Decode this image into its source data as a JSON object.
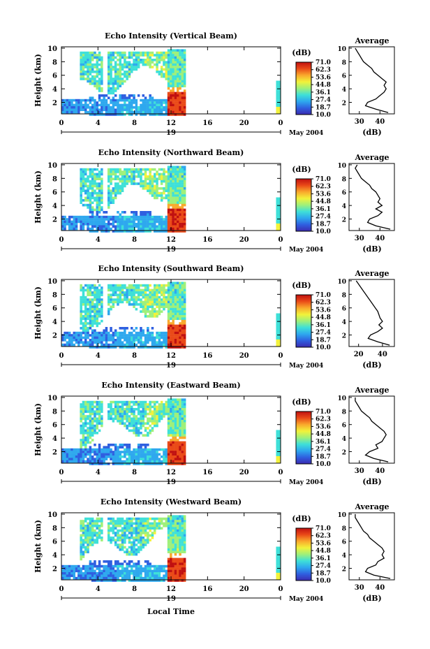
{
  "x_label": "Local Time",
  "y_label": "Height (km)",
  "day_label": "19",
  "month_label": "May 2004",
  "colorbar_unit": "(dB)",
  "avg_title": "Average",
  "avg_unit": "(dB)",
  "colorbar_ticks": [
    "71.0",
    "62.3",
    "53.6",
    "44.8",
    "36.1",
    "27.4",
    "18.7",
    "10.0"
  ],
  "colorbar_colors": [
    "#3b2bb0",
    "#2f5fe0",
    "#2ea8ee",
    "#3ee0d8",
    "#9ff07a",
    "#f2f23a",
    "#f9a92c",
    "#ea4a18",
    "#c01010"
  ],
  "chart_data": [
    {
      "type": "heatmap",
      "title": "Echo Intensity (Vertical Beam)",
      "xlabel": "",
      "ylabel": "Height (km)",
      "xlim": [
        0,
        24
      ],
      "ylim": [
        0.3,
        10.2
      ],
      "x_ticks": [
        "0",
        "4",
        "8",
        "12",
        "16",
        "20",
        "0"
      ],
      "y_ticks": [
        "2",
        "4",
        "6",
        "8",
        "10"
      ],
      "colorbar": {
        "label": "(dB)",
        "min": 10.0,
        "max": 71.0
      },
      "average_profile": {
        "xlabel": "(dB)",
        "x_ticks": [
          "30",
          "40"
        ],
        "xlim": [
          25,
          47
        ],
        "heights": [
          0.5,
          1.0,
          1.5,
          2.0,
          2.5,
          3.0,
          3.5,
          4.0,
          4.5,
          5.0,
          5.5,
          6.0,
          6.5,
          7.0,
          7.5,
          8.0,
          8.5,
          9.0,
          9.5,
          10.0
        ],
        "db": [
          44,
          38,
          33,
          34,
          38,
          40,
          42,
          43,
          42,
          43,
          41,
          39,
          37,
          36,
          34,
          32,
          31,
          30,
          29,
          28
        ]
      }
    },
    {
      "type": "heatmap",
      "title": "Echo Intensity (Northward Beam)",
      "xlabel": "",
      "ylabel": "Height (km)",
      "xlim": [
        0,
        24
      ],
      "ylim": [
        0.3,
        10.2
      ],
      "x_ticks": [
        "0",
        "4",
        "8",
        "12",
        "16",
        "20",
        "0"
      ],
      "y_ticks": [
        "2",
        "4",
        "6",
        "8",
        "10"
      ],
      "colorbar": {
        "label": "(dB)",
        "min": 10.0,
        "max": 71.0
      },
      "average_profile": {
        "xlabel": "(dB)",
        "x_ticks": [
          "30",
          "40"
        ],
        "xlim": [
          25,
          47
        ],
        "heights": [
          0.5,
          1.0,
          1.5,
          2.0,
          2.5,
          3.0,
          3.5,
          4.0,
          4.5,
          5.0,
          5.5,
          6.0,
          6.5,
          7.0,
          7.5,
          8.0,
          8.5,
          9.0,
          9.5,
          10.0
        ],
        "db": [
          45,
          38,
          34,
          35,
          39,
          41,
          38,
          41,
          39,
          40,
          39,
          38,
          36,
          35,
          33,
          31,
          30,
          29,
          28,
          29
        ]
      }
    },
    {
      "type": "heatmap",
      "title": "Echo Intensity (Southward Beam)",
      "xlabel": "",
      "ylabel": "Height (km)",
      "xlim": [
        0,
        24
      ],
      "ylim": [
        0.3,
        10.2
      ],
      "x_ticks": [
        "0",
        "4",
        "8",
        "12",
        "16",
        "20",
        "0"
      ],
      "y_ticks": [
        "2",
        "4",
        "6",
        "8",
        "10"
      ],
      "colorbar": {
        "label": "(dB)",
        "min": 10.0,
        "max": 71.0
      },
      "average_profile": {
        "xlabel": "(dB)",
        "x_ticks": [
          "20",
          "40"
        ],
        "xlim": [
          12,
          50
        ],
        "heights": [
          0.5,
          1.0,
          1.5,
          2.0,
          2.5,
          3.0,
          3.5,
          4.0,
          4.5,
          5.0,
          5.5,
          6.0,
          6.5,
          7.0,
          7.5,
          8.0,
          8.5,
          9.0,
          9.5,
          10.0
        ],
        "db": [
          46,
          36,
          28,
          30,
          36,
          40,
          37,
          40,
          38,
          37,
          36,
          34,
          32,
          30,
          28,
          26,
          24,
          22,
          20,
          18
        ]
      }
    },
    {
      "type": "heatmap",
      "title": "Echo Intensity (Eastward Beam)",
      "xlabel": "",
      "ylabel": "Height (km)",
      "xlim": [
        0,
        24
      ],
      "ylim": [
        0.3,
        10.2
      ],
      "x_ticks": [
        "0",
        "4",
        "8",
        "12",
        "16",
        "20",
        "0"
      ],
      "y_ticks": [
        "2",
        "4",
        "6",
        "8",
        "10"
      ],
      "colorbar": {
        "label": "(dB)",
        "min": 10.0,
        "max": 71.0
      },
      "average_profile": {
        "xlabel": "(dB)",
        "x_ticks": [
          "30",
          "40"
        ],
        "xlim": [
          25,
          47
        ],
        "heights": [
          0.5,
          1.0,
          1.5,
          2.0,
          2.5,
          3.0,
          3.5,
          4.0,
          4.5,
          5.0,
          5.5,
          6.0,
          6.5,
          7.0,
          7.5,
          8.0,
          8.5,
          9.0,
          9.5,
          10.0
        ],
        "db": [
          44,
          37,
          33,
          35,
          39,
          38,
          41,
          42,
          43,
          42,
          40,
          38,
          36,
          35,
          33,
          31,
          30,
          29,
          28,
          28
        ]
      }
    },
    {
      "type": "heatmap",
      "title": "Echo Intensity (Westward Beam)",
      "xlabel": "Local Time",
      "ylabel": "Height (km)",
      "xlim": [
        0,
        24
      ],
      "ylim": [
        0.3,
        10.2
      ],
      "x_ticks": [
        "0",
        "4",
        "8",
        "12",
        "16",
        "20",
        "0"
      ],
      "y_ticks": [
        "2",
        "4",
        "6",
        "8",
        "10"
      ],
      "colorbar": {
        "label": "(dB)",
        "min": 10.0,
        "max": 71.0
      },
      "average_profile": {
        "xlabel": "(dB)",
        "x_ticks": [
          "30",
          "40"
        ],
        "xlim": [
          25,
          47
        ],
        "heights": [
          0.5,
          1.0,
          1.5,
          2.0,
          2.5,
          3.0,
          3.5,
          4.0,
          4.5,
          5.0,
          5.5,
          6.0,
          6.5,
          7.0,
          7.5,
          8.0,
          8.5,
          9.0,
          9.5,
          10.0
        ],
        "db": [
          45,
          37,
          33,
          34,
          38,
          39,
          42,
          41,
          42,
          41,
          39,
          37,
          35,
          34,
          32,
          31,
          30,
          29,
          28,
          28
        ]
      }
    }
  ]
}
